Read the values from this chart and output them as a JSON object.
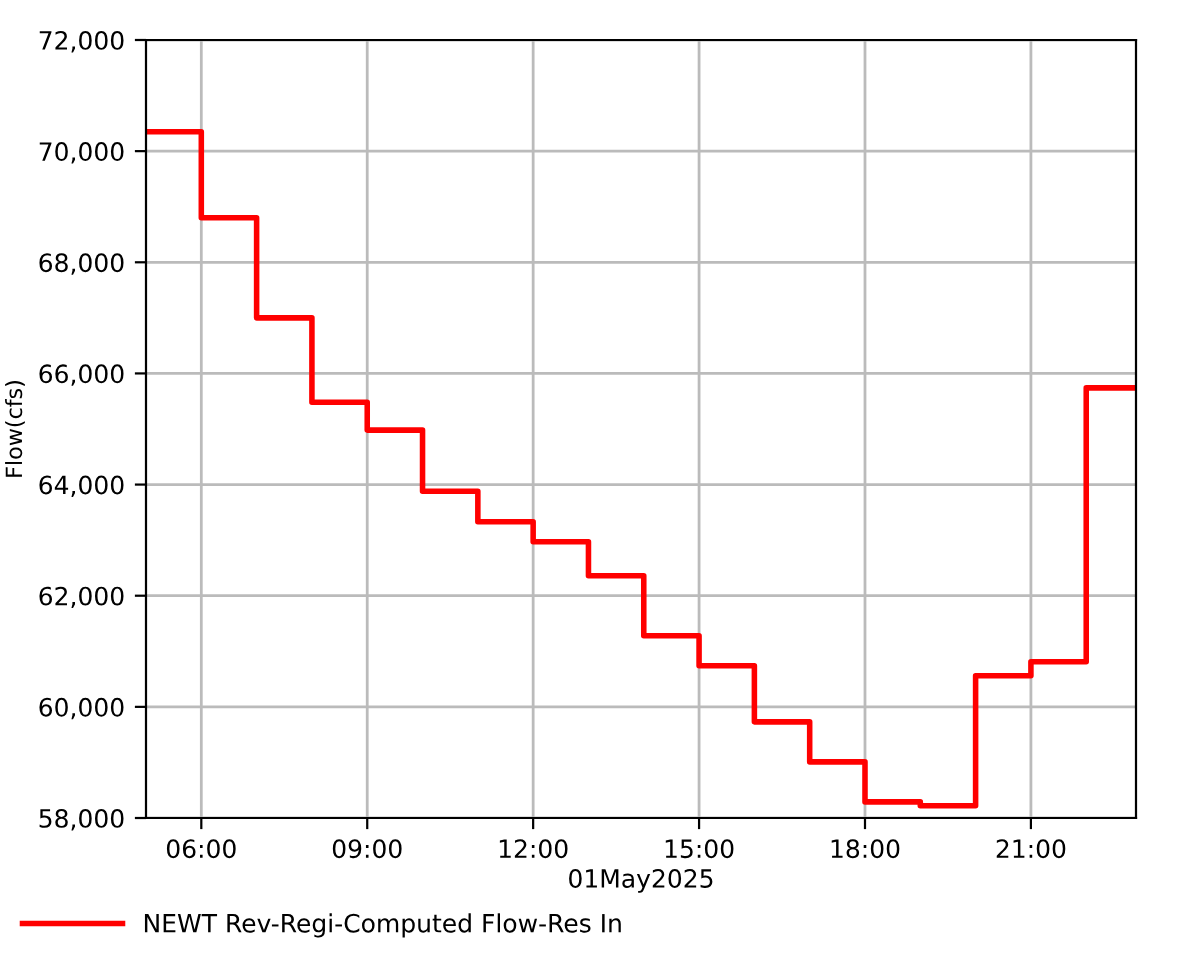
{
  "chart_data": {
    "type": "step",
    "ylabel": "Flow(cfs)",
    "xlabel": "01May2025",
    "x": [
      5,
      6,
      7,
      8,
      9,
      10,
      11,
      12,
      13,
      14,
      15,
      16,
      17,
      18,
      19,
      20,
      21,
      22,
      22.9
    ],
    "series": [
      {
        "name": "NEWT Rev-Regi-Computed Flow-Res In",
        "color": "#ff0000",
        "values": [
          70350,
          68800,
          67000,
          65480,
          64980,
          63880,
          63330,
          62970,
          62360,
          61280,
          60740,
          59730,
          59010,
          58290,
          58220,
          60560,
          60810,
          65740,
          65740
        ]
      }
    ],
    "xlim": [
      5,
      22.9
    ],
    "ylim": [
      58000,
      72000
    ],
    "xticks": [
      {
        "value": 6,
        "label": "06:00"
      },
      {
        "value": 9,
        "label": "09:00"
      },
      {
        "value": 12,
        "label": "12:00"
      },
      {
        "value": 15,
        "label": "15:00"
      },
      {
        "value": 18,
        "label": "18:00"
      },
      {
        "value": 21,
        "label": "21:00"
      }
    ],
    "yticks": [
      {
        "value": 58000,
        "label": "58,000"
      },
      {
        "value": 60000,
        "label": "60,000"
      },
      {
        "value": 62000,
        "label": "62,000"
      },
      {
        "value": 64000,
        "label": "64,000"
      },
      {
        "value": 66000,
        "label": "66,000"
      },
      {
        "value": 68000,
        "label": "68,000"
      },
      {
        "value": 70000,
        "label": "70,000"
      },
      {
        "value": 72000,
        "label": "72,000"
      }
    ],
    "grid": true,
    "legend": "bottom left",
    "line_style": "solid"
  }
}
